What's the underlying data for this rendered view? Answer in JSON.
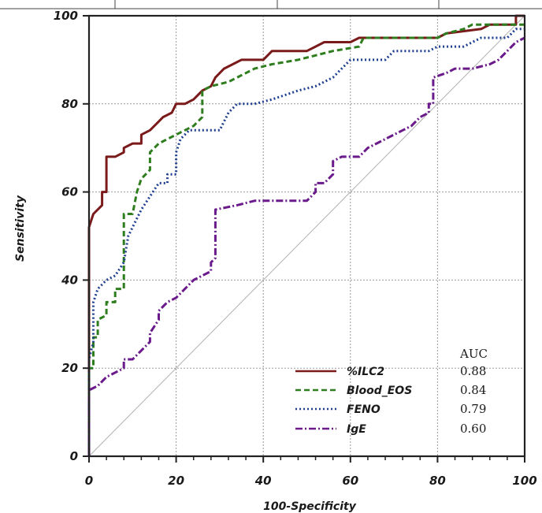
{
  "chart_data": {
    "type": "line",
    "xlabel": "100-Specificity",
    "ylabel": "Sensitivity",
    "xlim": [
      0,
      100
    ],
    "ylim": [
      0,
      100
    ],
    "xticks": [
      "0",
      "20",
      "40",
      "60",
      "80",
      "100"
    ],
    "yticks": [
      "0",
      "20",
      "40",
      "60",
      "80",
      "100"
    ],
    "grid": true,
    "legend_position": "bottom-right",
    "legend_header": "AUC",
    "reference_line": {
      "x": [
        0,
        100
      ],
      "y": [
        0,
        100
      ],
      "color": "#b0b0b0"
    },
    "series": [
      {
        "name": "%ILC2",
        "auc": "0.88",
        "color": "#7a1a1a",
        "dash": "solid",
        "points": [
          [
            0,
            0
          ],
          [
            0,
            52
          ],
          [
            1,
            55
          ],
          [
            3,
            57
          ],
          [
            3,
            60
          ],
          [
            4,
            60
          ],
          [
            4,
            68
          ],
          [
            6,
            68
          ],
          [
            8,
            69
          ],
          [
            8,
            70
          ],
          [
            10,
            71
          ],
          [
            12,
            71
          ],
          [
            12,
            73
          ],
          [
            14,
            74
          ],
          [
            16,
            76
          ],
          [
            17,
            77
          ],
          [
            19,
            78
          ],
          [
            20,
            80
          ],
          [
            22,
            80
          ],
          [
            24,
            81
          ],
          [
            26,
            83
          ],
          [
            28,
            84
          ],
          [
            29,
            86
          ],
          [
            31,
            88
          ],
          [
            33,
            89
          ],
          [
            35,
            90
          ],
          [
            40,
            90
          ],
          [
            42,
            92
          ],
          [
            50,
            92
          ],
          [
            52,
            93
          ],
          [
            54,
            94
          ],
          [
            60,
            94
          ],
          [
            62,
            95
          ],
          [
            80,
            95
          ],
          [
            82,
            96
          ],
          [
            90,
            97
          ],
          [
            92,
            98
          ],
          [
            98,
            98
          ],
          [
            98,
            100
          ],
          [
            100,
            100
          ]
        ]
      },
      {
        "name": "Blood_EOS",
        "auc": "0.84",
        "color": "#2e7d1e",
        "dash": "7,4",
        "points": [
          [
            0,
            0
          ],
          [
            0,
            20
          ],
          [
            1,
            20
          ],
          [
            1,
            27
          ],
          [
            2,
            27
          ],
          [
            2,
            31
          ],
          [
            4,
            32
          ],
          [
            4,
            35
          ],
          [
            6,
            35
          ],
          [
            6,
            38
          ],
          [
            8,
            38
          ],
          [
            8,
            55
          ],
          [
            10,
            55
          ],
          [
            11,
            60
          ],
          [
            12,
            63
          ],
          [
            14,
            65
          ],
          [
            14,
            69
          ],
          [
            16,
            71
          ],
          [
            20,
            73
          ],
          [
            22,
            74
          ],
          [
            24,
            75
          ],
          [
            26,
            77
          ],
          [
            26,
            83
          ],
          [
            28,
            84
          ],
          [
            32,
            85
          ],
          [
            34,
            86
          ],
          [
            36,
            87
          ],
          [
            38,
            88
          ],
          [
            42,
            89
          ],
          [
            48,
            90
          ],
          [
            52,
            91
          ],
          [
            56,
            92
          ],
          [
            62,
            93
          ],
          [
            63,
            95
          ],
          [
            66,
            95
          ],
          [
            76,
            95
          ],
          [
            80,
            95
          ],
          [
            82,
            96
          ],
          [
            86,
            97
          ],
          [
            88,
            98
          ],
          [
            100,
            98
          ]
        ]
      },
      {
        "name": "FENO",
        "auc": "0.79",
        "color": "#1e3f8f",
        "dash": "2,3",
        "points": [
          [
            0,
            0
          ],
          [
            0,
            22
          ],
          [
            1,
            26
          ],
          [
            1,
            35
          ],
          [
            2,
            38
          ],
          [
            4,
            40
          ],
          [
            6,
            41
          ],
          [
            8,
            44
          ],
          [
            9,
            50
          ],
          [
            10,
            52
          ],
          [
            12,
            56
          ],
          [
            14,
            59
          ],
          [
            16,
            62
          ],
          [
            18,
            62
          ],
          [
            18,
            64
          ],
          [
            20,
            64
          ],
          [
            20,
            69
          ],
          [
            21,
            72
          ],
          [
            23,
            74
          ],
          [
            30,
            74
          ],
          [
            32,
            78
          ],
          [
            34,
            80
          ],
          [
            38,
            80
          ],
          [
            42,
            81
          ],
          [
            48,
            83
          ],
          [
            52,
            84
          ],
          [
            56,
            86
          ],
          [
            58,
            88
          ],
          [
            60,
            90
          ],
          [
            68,
            90
          ],
          [
            70,
            92
          ],
          [
            78,
            92
          ],
          [
            80,
            93
          ],
          [
            86,
            93
          ],
          [
            88,
            94
          ],
          [
            90,
            95
          ],
          [
            96,
            95
          ],
          [
            98,
            97
          ],
          [
            100,
            97
          ]
        ]
      },
      {
        "name": "IgE",
        "auc": "0.60",
        "color": "#6a1a8a",
        "dash": "9,3,2,3",
        "points": [
          [
            0,
            0
          ],
          [
            0,
            5
          ],
          [
            0,
            15
          ],
          [
            2,
            16
          ],
          [
            4,
            18
          ],
          [
            6,
            19
          ],
          [
            8,
            20
          ],
          [
            8,
            22
          ],
          [
            10,
            22
          ],
          [
            12,
            24
          ],
          [
            14,
            26
          ],
          [
            14,
            28
          ],
          [
            16,
            31
          ],
          [
            16,
            33
          ],
          [
            18,
            35
          ],
          [
            20,
            36
          ],
          [
            22,
            38
          ],
          [
            24,
            40
          ],
          [
            26,
            41
          ],
          [
            28,
            42
          ],
          [
            28,
            44
          ],
          [
            29,
            45
          ],
          [
            29,
            56
          ],
          [
            34,
            57
          ],
          [
            38,
            58
          ],
          [
            40,
            58
          ],
          [
            50,
            58
          ],
          [
            52,
            60
          ],
          [
            52,
            62
          ],
          [
            54,
            62
          ],
          [
            56,
            64
          ],
          [
            56,
            67
          ],
          [
            58,
            68
          ],
          [
            62,
            68
          ],
          [
            64,
            70
          ],
          [
            66,
            71
          ],
          [
            68,
            72
          ],
          [
            70,
            73
          ],
          [
            72,
            74
          ],
          [
            74,
            75
          ],
          [
            76,
            77
          ],
          [
            78,
            78
          ],
          [
            78,
            80
          ],
          [
            79,
            80
          ],
          [
            79,
            86
          ],
          [
            82,
            87
          ],
          [
            84,
            88
          ],
          [
            88,
            88
          ],
          [
            92,
            89
          ],
          [
            94,
            90
          ],
          [
            96,
            92
          ],
          [
            98,
            94
          ],
          [
            100,
            95
          ]
        ]
      }
    ]
  }
}
